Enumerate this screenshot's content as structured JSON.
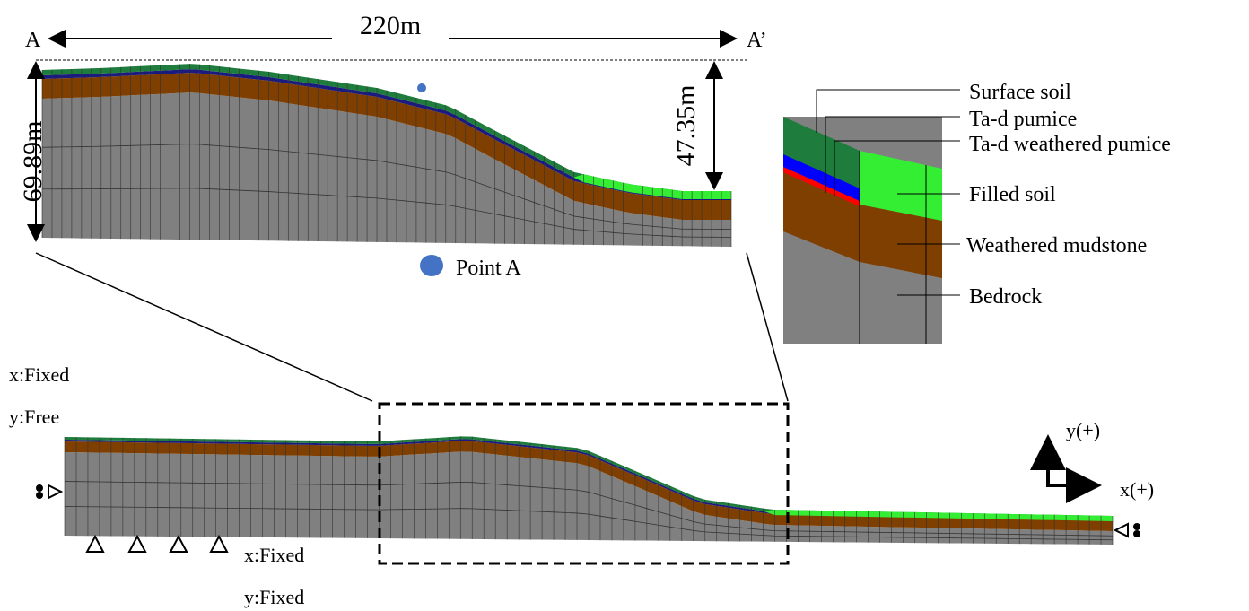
{
  "section": {
    "start": "A",
    "end": "A’",
    "width": "220m",
    "height": "69.89m",
    "depth": "47.35m",
    "point": "Point A"
  },
  "legend": {
    "layers": [
      "Surface soil",
      "Ta-d pumice",
      "Ta-d weathered pumice",
      "Filled soil",
      "Weathered mudstone",
      "Bedrock"
    ]
  },
  "boundary": {
    "side": {
      "x": "x:Fixed",
      "y": "y:Free"
    },
    "bottom": {
      "x": "x:Fixed",
      "y": "y:Fixed"
    }
  },
  "axes": {
    "y": "y(+)",
    "x": "x(+)"
  }
}
